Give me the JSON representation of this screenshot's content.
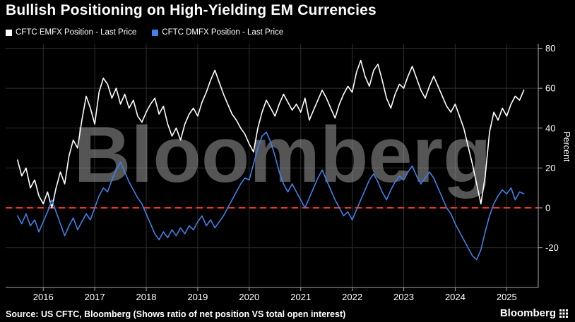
{
  "title": "Bullish Positioning on High-Yielding EM Currencies",
  "legend": [
    {
      "label": "CFTC EMFX Position - Last Price",
      "color": "#ffffff"
    },
    {
      "label": "CFTC DMFX Position - Last Price",
      "color": "#4080e8"
    }
  ],
  "footer": {
    "source": "Source: US CFTC, Bloomberg (Shows ratio of net position VS total open interest)",
    "brand": "Bloomberg"
  },
  "chart_data": {
    "type": "line",
    "title": "Bullish Positioning on High-Yielding EM Currencies",
    "xlabel": "",
    "ylabel": "Percent",
    "watermark": "Bloomberg",
    "grid": true,
    "legend_position": "top-left",
    "xlim": [
      2015.27,
      2025.62
    ],
    "ylim": [
      -40,
      82
    ],
    "x_ticks": [
      2016,
      2017,
      2018,
      2019,
      2020,
      2021,
      2022,
      2023,
      2024,
      2025
    ],
    "y_ticks": [
      80,
      60,
      40,
      20,
      0,
      -20
    ],
    "x_start": 2015.5,
    "x_step": 0.08333,
    "zero_line": {
      "value": 0,
      "color": "#ea3323",
      "style": "dashed"
    },
    "colors": {
      "grid": "#2d2d2d",
      "axis": "#aaaaaa",
      "tick_text": "#ffffff",
      "watermark": "#9c9c9c",
      "background": "#000000"
    },
    "series": [
      {
        "name": "CFTC EMFX Position - Last Price",
        "color": "#ffffff",
        "values": [
          24,
          16,
          20,
          10,
          14,
          6,
          2,
          8,
          0,
          10,
          18,
          12,
          26,
          34,
          30,
          44,
          56,
          50,
          42,
          58,
          65,
          62,
          55,
          60,
          52,
          57,
          50,
          54,
          46,
          43,
          48,
          52,
          55,
          47,
          51,
          42,
          36,
          40,
          34,
          42,
          47,
          50,
          46,
          53,
          58,
          64,
          69,
          63,
          57,
          52,
          47,
          44,
          40,
          37,
          32,
          28,
          40,
          48,
          54,
          50,
          46,
          52,
          57,
          53,
          49,
          52,
          48,
          55,
          44,
          49,
          54,
          59,
          55,
          50,
          45,
          52,
          57,
          61,
          58,
          68,
          74,
          66,
          61,
          69,
          72,
          64,
          55,
          50,
          57,
          62,
          60,
          66,
          71,
          65,
          59,
          55,
          61,
          66,
          61,
          56,
          51,
          48,
          52,
          46,
          40,
          31,
          22,
          12,
          2,
          16,
          38,
          48,
          44,
          50,
          46,
          52,
          56,
          54,
          59
        ]
      },
      {
        "name": "CFTC DMFX Position - Last Price",
        "color": "#4080e8",
        "values": [
          -4,
          -8,
          -3,
          -9,
          -6,
          -12,
          -7,
          -2,
          4,
          -2,
          -8,
          -14,
          -9,
          -5,
          -11,
          -7,
          -3,
          -6,
          0,
          6,
          10,
          8,
          14,
          19,
          23,
          18,
          13,
          9,
          5,
          2,
          -3,
          -8,
          -13,
          -16,
          -12,
          -15,
          -11,
          -14,
          -10,
          -13,
          -9,
          -11,
          -7,
          -4,
          -9,
          -6,
          -10,
          -7,
          -4,
          0,
          4,
          8,
          12,
          15,
          14,
          22,
          30,
          36,
          38,
          33,
          26,
          18,
          12,
          8,
          12,
          8,
          4,
          0,
          5,
          10,
          15,
          19,
          14,
          9,
          4,
          0,
          -4,
          -2,
          -6,
          -1,
          4,
          9,
          14,
          17,
          13,
          8,
          4,
          9,
          13,
          16,
          14,
          18,
          21,
          16,
          12,
          15,
          18,
          15,
          10,
          5,
          0,
          -3,
          -8,
          -12,
          -16,
          -20,
          -24,
          -26,
          -21,
          -12,
          -4,
          2,
          6,
          9,
          7,
          10,
          4,
          8,
          7
        ]
      }
    ]
  }
}
